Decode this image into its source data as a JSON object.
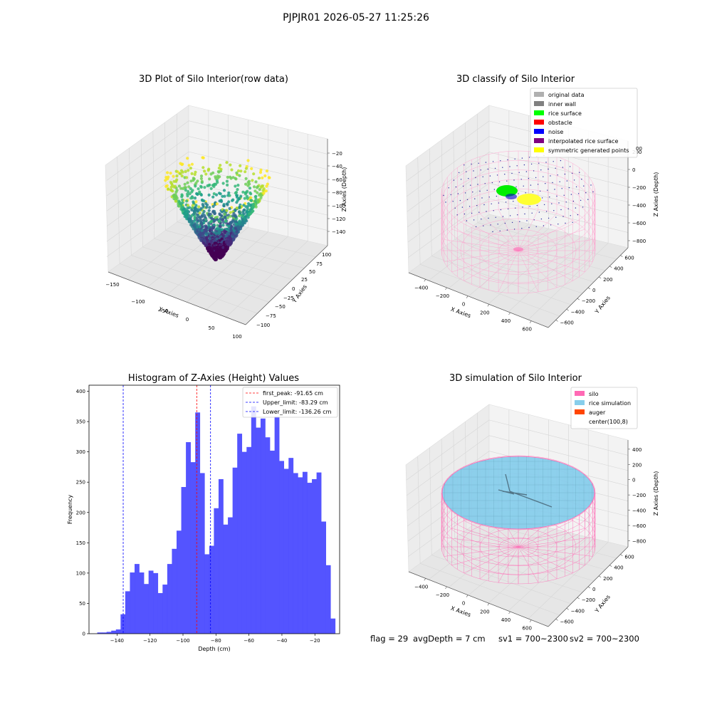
{
  "suptitle": "PJPJR01 2026-05-27 11:25:26",
  "footer": {
    "flag": "flag = 29",
    "avg_depth": "avgDepth = 7 cm",
    "sv1": "sv1 = 700~2300",
    "sv2": "sv2 = 700~2300"
  },
  "chart_data": [
    {
      "type": "scatter",
      "title": "3D Plot of Silo Interior(row data)",
      "xlabel": "X Axies",
      "ylabel": "Y Axies",
      "zlabel": "Z Axies (Depth)",
      "x_ticks": [
        "−150",
        "−100",
        "−50",
        "0",
        "50",
        "100"
      ],
      "y_ticks": [
        "100",
        "75",
        "50",
        "25",
        "0",
        "−25",
        "−50",
        "−75",
        "−100"
      ],
      "z_ticks": [
        "−20",
        "−40",
        "−60",
        "−80",
        "−100",
        "−120",
        "−140"
      ],
      "colormap": [
        "#fde725",
        "#b5de2b",
        "#6ece58",
        "#35b779",
        "#1f9e89",
        "#26828e",
        "#31688e",
        "#3e4989",
        "#482878",
        "#440154"
      ]
    },
    {
      "type": "scatter",
      "title": "3D classify of Silo Interior",
      "xlabel": "X Axies",
      "ylabel": "Y Axies",
      "zlabel": "Z Axies (Depth)",
      "x_ticks": [
        "−400",
        "−200",
        "0",
        "200",
        "400",
        "600"
      ],
      "y_ticks": [
        "600",
        "400",
        "200",
        "0",
        "−200",
        "−400",
        "−600"
      ],
      "z_ticks": [
        "200",
        "0",
        "−200",
        "−400",
        "−600",
        "−800"
      ],
      "legend": [
        {
          "label": "original data",
          "color": "#b0b0b0"
        },
        {
          "label": "inner wall",
          "color": "#808080"
        },
        {
          "label": "rice surface",
          "color": "#00ff00"
        },
        {
          "label": "obstacle",
          "color": "#ff0000"
        },
        {
          "label": "noise",
          "color": "#0000ff"
        },
        {
          "label": "interpolated rice surface",
          "color": "#800080"
        },
        {
          "label": "symmetric generated points",
          "color": "#ffff00"
        }
      ],
      "z_tick_partial": "00"
    },
    {
      "type": "bar",
      "title": "Histogram of Z-Axies (Height) Values",
      "xlabel": "Depth (cm)",
      "ylabel": "Frequency",
      "color": "#4b4bff",
      "xlim": [
        -157,
        -5
      ],
      "ylim": [
        0,
        410
      ],
      "x_ticks": [
        -140,
        -120,
        -100,
        -80,
        -60,
        -40,
        -20
      ],
      "y_ticks": [
        0,
        50,
        100,
        150,
        200,
        250,
        300,
        350,
        400
      ],
      "x_tick_labels": [
        "−140",
        "−120",
        "−100",
        "−80",
        "−60",
        "−40",
        "−20"
      ],
      "y_tick_labels": [
        "0",
        "50",
        "100",
        "150",
        "200",
        "250",
        "300",
        "350",
        "400"
      ],
      "bins_start": -152,
      "bin_width": 2.83,
      "values": [
        2,
        2,
        3,
        5,
        7,
        32,
        70,
        101,
        115,
        101,
        82,
        104,
        100,
        67,
        81,
        115,
        140,
        170,
        242,
        316,
        283,
        365,
        265,
        131,
        145,
        207,
        255,
        180,
        192,
        274,
        330,
        300,
        308,
        375,
        340,
        355,
        324,
        302,
        358,
        285,
        272,
        290,
        265,
        258,
        267,
        249,
        255,
        266,
        185,
        113,
        25
      ],
      "vlines": [
        {
          "label": "first_peak: -91.65 cm",
          "x": -91.65,
          "color": "#ff0000"
        },
        {
          "label": "Upper_limit: -83.29 cm",
          "x": -83.29,
          "color": "#0000ff"
        },
        {
          "label": "Lower_limit: -136.26 cm",
          "x": -136.26,
          "color": "#0000ff"
        }
      ]
    },
    {
      "type": "scatter",
      "title": "3D simulation of Silo Interior",
      "xlabel": "X Axies",
      "ylabel": "Y Axies",
      "zlabel": "Z Axies (Depth)",
      "x_ticks": [
        "−400",
        "−200",
        "0",
        "200",
        "400",
        "600"
      ],
      "y_ticks": [
        "600",
        "400",
        "200",
        "0",
        "−200",
        "−400",
        "−600"
      ],
      "z_ticks": [
        "400",
        "200",
        "0",
        "−200",
        "−400",
        "−600",
        "−800"
      ],
      "legend": [
        {
          "label": "silo",
          "color": "#ff69b4"
        },
        {
          "label": "rice simulation",
          "color": "#87ceeb"
        },
        {
          "label": "auger",
          "color": "#ff4500"
        },
        {
          "label": "center(100,8)",
          "color": ""
        }
      ]
    }
  ]
}
